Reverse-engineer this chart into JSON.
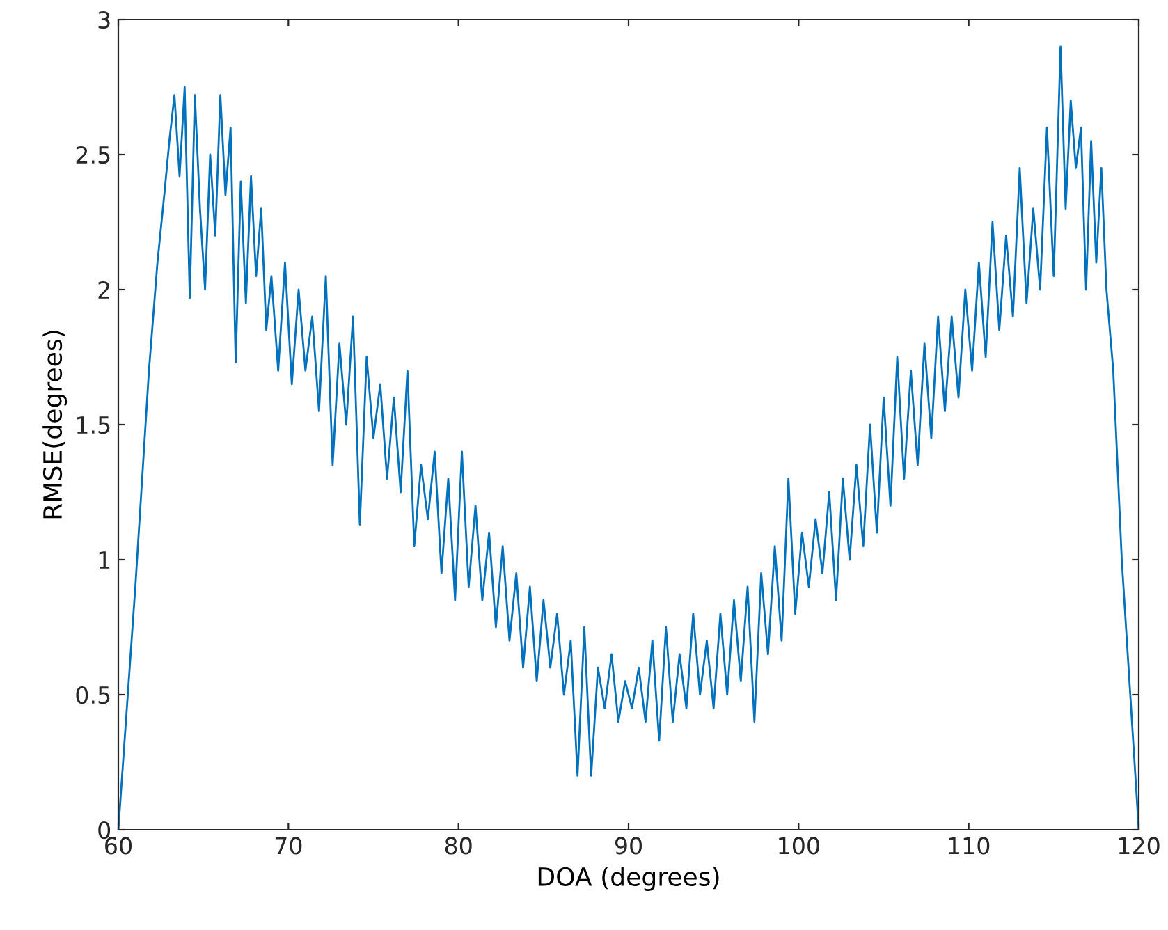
{
  "chart_data": {
    "type": "line",
    "xlabel": "DOA (degrees)",
    "ylabel": "RMSE(degrees)",
    "xlim": [
      60,
      120
    ],
    "ylim": [
      0,
      3
    ],
    "xticks": [
      60,
      70,
      80,
      90,
      100,
      110,
      120
    ],
    "yticks": [
      0,
      0.5,
      1,
      1.5,
      2,
      2.5,
      3
    ],
    "marker": "none",
    "line_style": "solid",
    "series": [
      {
        "color": "#0072bd",
        "x": [
          60,
          61,
          61.8,
          62.3,
          62.7,
          63,
          63.3,
          63.6,
          63.9,
          64.2,
          64.5,
          64.8,
          65.1,
          65.4,
          65.7,
          66,
          66.3,
          66.6,
          66.9,
          67.2,
          67.5,
          67.8,
          68.1,
          68.4,
          68.7,
          69,
          69.4,
          69.8,
          70.2,
          70.6,
          71,
          71.4,
          71.8,
          72.2,
          72.6,
          73,
          73.4,
          73.8,
          74.2,
          74.6,
          75,
          75.4,
          75.8,
          76.2,
          76.6,
          77,
          77.4,
          77.8,
          78.2,
          78.6,
          79,
          79.4,
          79.8,
          80.2,
          80.6,
          81,
          81.4,
          81.8,
          82.2,
          82.6,
          83,
          83.4,
          83.8,
          84.2,
          84.6,
          85,
          85.4,
          85.8,
          86.2,
          86.6,
          87,
          87.4,
          87.8,
          88.2,
          88.6,
          89,
          89.4,
          89.8,
          90.2,
          90.6,
          91,
          91.4,
          91.8,
          92.2,
          92.6,
          93,
          93.4,
          93.8,
          94.2,
          94.6,
          95,
          95.4,
          95.8,
          96.2,
          96.6,
          97,
          97.4,
          97.8,
          98.2,
          98.6,
          99,
          99.4,
          99.8,
          100.2,
          100.6,
          101,
          101.4,
          101.8,
          102.2,
          102.6,
          103,
          103.4,
          103.8,
          104.2,
          104.6,
          105,
          105.4,
          105.8,
          106.2,
          106.6,
          107,
          107.4,
          107.8,
          108.2,
          108.6,
          109,
          109.4,
          109.8,
          110.2,
          110.6,
          111,
          111.4,
          111.8,
          112.2,
          112.6,
          113,
          113.4,
          113.8,
          114.2,
          114.6,
          115,
          115.4,
          115.7,
          116,
          116.3,
          116.6,
          116.9,
          117.2,
          117.5,
          117.8,
          118.1,
          118.5,
          119,
          119.5,
          120
        ],
        "values": [
          0,
          0.9,
          1.7,
          2.1,
          2.35,
          2.55,
          2.72,
          2.42,
          2.75,
          1.97,
          2.72,
          2.3,
          2.0,
          2.5,
          2.2,
          2.72,
          2.35,
          2.6,
          1.73,
          2.4,
          1.95,
          2.42,
          2.05,
          2.3,
          1.85,
          2.05,
          1.7,
          2.1,
          1.65,
          2.0,
          1.7,
          1.9,
          1.55,
          2.05,
          1.35,
          1.8,
          1.5,
          1.9,
          1.13,
          1.75,
          1.45,
          1.65,
          1.3,
          1.6,
          1.25,
          1.7,
          1.05,
          1.35,
          1.15,
          1.4,
          0.95,
          1.3,
          0.85,
          1.4,
          0.9,
          1.2,
          0.85,
          1.1,
          0.75,
          1.05,
          0.7,
          0.95,
          0.6,
          0.9,
          0.55,
          0.85,
          0.6,
          0.8,
          0.5,
          0.7,
          0.2,
          0.75,
          0.2,
          0.6,
          0.45,
          0.65,
          0.4,
          0.55,
          0.45,
          0.6,
          0.4,
          0.7,
          0.33,
          0.75,
          0.4,
          0.65,
          0.45,
          0.8,
          0.5,
          0.7,
          0.45,
          0.8,
          0.5,
          0.85,
          0.55,
          0.9,
          0.4,
          0.95,
          0.65,
          1.05,
          0.7,
          1.3,
          0.8,
          1.1,
          0.9,
          1.15,
          0.95,
          1.25,
          0.85,
          1.3,
          1.0,
          1.35,
          1.05,
          1.5,
          1.1,
          1.6,
          1.2,
          1.75,
          1.3,
          1.7,
          1.35,
          1.8,
          1.45,
          1.9,
          1.55,
          1.9,
          1.6,
          2.0,
          1.7,
          2.1,
          1.75,
          2.25,
          1.85,
          2.2,
          1.9,
          2.45,
          1.95,
          2.3,
          2.0,
          2.6,
          2.05,
          2.9,
          2.3,
          2.7,
          2.45,
          2.6,
          2.0,
          2.55,
          2.1,
          2.45,
          2.0,
          1.7,
          1.0,
          0.5,
          0
        ]
      }
    ]
  }
}
